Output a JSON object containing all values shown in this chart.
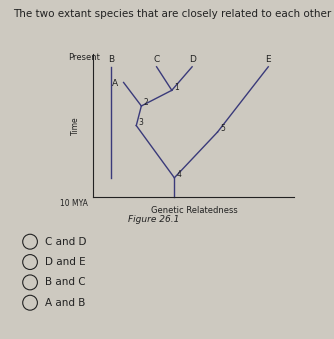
{
  "title": "The two extant species that are closely related to each other are ____.",
  "title_fontsize": 7.5,
  "bg_color": "#cdc9c0",
  "tree_color": "#3a3a7a",
  "text_color": "#222222",
  "present_label": "Present",
  "mya_label": "10 MYA",
  "xlabel": "Genetic Relatedness",
  "figure_label": "Figure 26.1",
  "time_label": "Time",
  "options": [
    "C and D",
    "D and E",
    "B and C",
    "A and B"
  ]
}
